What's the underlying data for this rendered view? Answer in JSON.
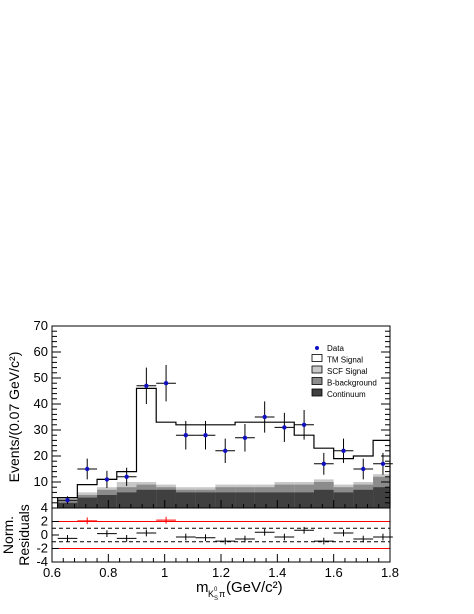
{
  "chart_data": [
    {
      "type": "histogram",
      "xlim": [
        0.6,
        1.8
      ],
      "ylim": [
        0,
        70
      ],
      "bin_width": 0.07,
      "bin_edges": [
        0.62,
        0.69,
        0.76,
        0.83,
        0.9,
        0.97,
        1.04,
        1.11,
        1.18,
        1.25,
        1.32,
        1.39,
        1.46,
        1.53,
        1.6,
        1.67,
        1.74,
        1.8
      ],
      "ylabel": "Events/(0.07 GeV/c²)",
      "yticks": [
        "0",
        "10",
        "20",
        "30",
        "40",
        "50",
        "60",
        "70"
      ],
      "grid": false,
      "legend_position": "top-right",
      "legend": [
        "Data",
        "TM Signal",
        "SCF Signal",
        "B-background",
        "Continuum"
      ],
      "series": [
        {
          "name": "Data",
          "x": [
            0.655,
            0.725,
            0.795,
            0.865,
            0.935,
            1.005,
            1.075,
            1.145,
            1.215,
            1.285,
            1.355,
            1.425,
            1.495,
            1.565,
            1.635,
            1.705,
            1.775
          ],
          "y": [
            3,
            15,
            11,
            12,
            47,
            48,
            28,
            28,
            22,
            27,
            35,
            31,
            32,
            17,
            22,
            15,
            17
          ],
          "err": [
            1.5,
            4,
            3.3,
            3.5,
            7,
            7,
            5.5,
            5.5,
            4.7,
            5.3,
            6,
            5.6,
            5.7,
            4.2,
            4.7,
            4,
            4.2
          ]
        },
        {
          "name": "TM Signal",
          "values": [
            4,
            9,
            11,
            14,
            46,
            33,
            32,
            32,
            32,
            33,
            33,
            33,
            28,
            23,
            19,
            20,
            26
          ]
        },
        {
          "name": "SCF Signal",
          "values": [
            4,
            6,
            8,
            10,
            10,
            9,
            8,
            8,
            9,
            9,
            9,
            10,
            10,
            11,
            9,
            10,
            13
          ]
        },
        {
          "name": "B-background",
          "values": [
            3,
            5,
            7,
            8,
            9,
            8,
            7,
            7,
            8,
            8,
            8,
            9,
            9,
            10,
            8,
            9,
            12
          ]
        },
        {
          "name": "Continuum",
          "values": [
            2,
            4,
            5,
            6,
            7,
            7,
            6,
            6,
            6,
            6,
            6,
            6,
            6,
            7,
            6,
            7,
            8
          ]
        }
      ],
      "colors": {
        "data": "#1010c0",
        "scf": "#c8c8c8",
        "bbkg": "#8c8c8c",
        "cont": "#404040",
        "ref_line": "#ff0000"
      }
    },
    {
      "type": "scatter",
      "ylabel_line1": "Norm.",
      "ylabel_line2": "Residuals",
      "xlabel_main": "m",
      "xlabel_sub": "K",
      "xlabel_subsub": "S",
      "xlabel_sup": "0",
      "xlabel_pi": "π",
      "xlabel_units": "(GeV/c²)",
      "xticks": [
        "0.6",
        "0.8",
        "1",
        "1.2",
        "1.4",
        "1.6",
        "1.8"
      ],
      "yticks": [
        "-4",
        "-2",
        "0",
        "2",
        "4"
      ],
      "ylim": [
        -4,
        4
      ],
      "dashed_lines": [
        -1,
        1
      ],
      "red_lines": [
        -2,
        2
      ],
      "x": [
        0.655,
        0.725,
        0.795,
        0.865,
        0.935,
        1.005,
        1.075,
        1.145,
        1.215,
        1.285,
        1.355,
        1.425,
        1.495,
        1.565,
        1.635,
        1.705,
        1.775
      ],
      "y": [
        -0.5,
        2.1,
        0.2,
        -0.5,
        0.3,
        2.2,
        -0.3,
        -0.4,
        -0.9,
        -0.6,
        0.4,
        -0.3,
        0.7,
        -0.9,
        0.3,
        -0.6,
        -0.3
      ]
    }
  ]
}
